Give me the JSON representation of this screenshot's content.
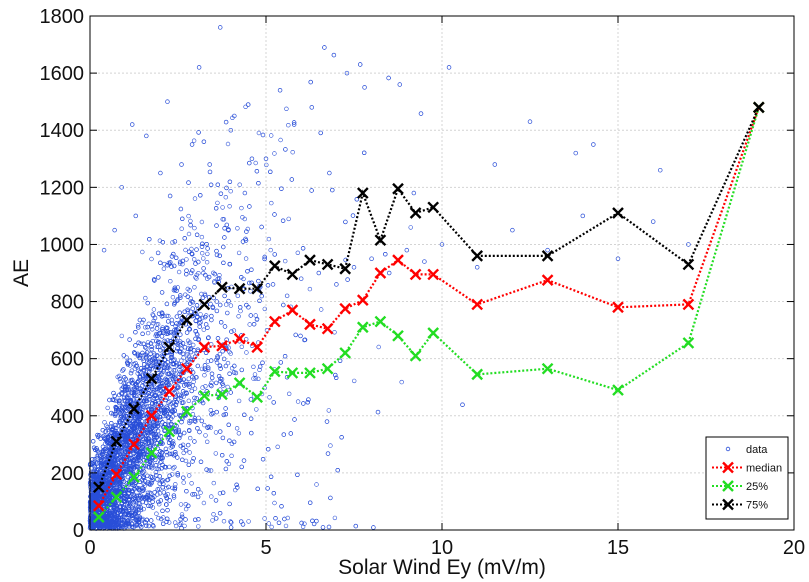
{
  "chart_data": {
    "type": "scatter",
    "title": "",
    "xlabel": "Solar Wind Ey (mV/m)",
    "ylabel": "AE",
    "xlim": [
      0,
      20
    ],
    "ylim": [
      0,
      1800
    ],
    "xticks": [
      0,
      5,
      10,
      15,
      20
    ],
    "yticks": [
      0,
      200,
      400,
      600,
      800,
      1000,
      1200,
      1400,
      1600,
      1800
    ],
    "grid": true,
    "legend_position": "bottom-right",
    "series": [
      {
        "name": "data",
        "kind": "scatter",
        "color": "#2a4fd8",
        "marker": "circle-open",
        "x": [
          0.1,
          0.2,
          0.3,
          0.4,
          0.5,
          0.6,
          0.8,
          1.0,
          1.2,
          1.5,
          1.8,
          2.1,
          2.4,
          2.7,
          3.0,
          3.3,
          3.6,
          3.9,
          4.2,
          4.5,
          4.8,
          5.2,
          5.6,
          6.0,
          6.5,
          7.0,
          7.5,
          8.0,
          8.5,
          9.0,
          9.5,
          10.0,
          11.0,
          12.0,
          13.0,
          14.0,
          15.0,
          16.0,
          17.0,
          1.2,
          1.6,
          2.2,
          2.6,
          3.1,
          3.7,
          4.1,
          4.6,
          5.4,
          6.3,
          7.3,
          8.8,
          10.2,
          12.5,
          14.3,
          0.4,
          0.7,
          0.9,
          1.3,
          2.0,
          2.9,
          3.4,
          4.0,
          4.4,
          5.0,
          5.8,
          6.8,
          7.8,
          9.2,
          11.5,
          13.8,
          16.2
        ],
        "y": [
          180,
          250,
          320,
          200,
          360,
          280,
          420,
          300,
          480,
          520,
          600,
          560,
          700,
          640,
          760,
          720,
          800,
          760,
          820,
          780,
          840,
          860,
          820,
          880,
          900,
          860,
          920,
          950,
          900,
          980,
          940,
          1000,
          920,
          1050,
          980,
          1100,
          950,
          1080,
          1000,
          1420,
          1380,
          1500,
          1280,
          1620,
          1760,
          1450,
          1300,
          1540,
          1480,
          1600,
          1560,
          1620,
          1430,
          1350,
          980,
          1050,
          1200,
          1100,
          1250,
          1350,
          1280,
          1400,
          1180,
          1300,
          1420,
          1250,
          1550,
          1180,
          1280,
          1320,
          1260
        ]
      },
      {
        "name": "median",
        "kind": "line",
        "color": "#ff0000",
        "marker": "x",
        "x": [
          0.25,
          0.75,
          1.25,
          1.75,
          2.25,
          2.75,
          3.25,
          3.75,
          4.25,
          4.75,
          5.25,
          5.75,
          6.25,
          6.75,
          7.25,
          7.75,
          8.25,
          8.75,
          9.25,
          9.75,
          11,
          13,
          15,
          17,
          19
        ],
        "y": [
          85,
          195,
          300,
          400,
          485,
          565,
          640,
          645,
          670,
          640,
          730,
          770,
          720,
          705,
          775,
          805,
          900,
          945,
          895,
          895,
          790,
          875,
          780,
          790,
          1480
        ]
      },
      {
        "name": "25%",
        "kind": "line",
        "color": "#22dd22",
        "marker": "x",
        "x": [
          0.25,
          0.75,
          1.25,
          1.75,
          2.25,
          2.75,
          3.25,
          3.75,
          4.25,
          4.75,
          5.25,
          5.75,
          6.25,
          6.75,
          7.25,
          7.75,
          8.25,
          8.75,
          9.25,
          9.75,
          11,
          13,
          15,
          17,
          19
        ],
        "y": [
          45,
          115,
          185,
          270,
          345,
          415,
          470,
          475,
          515,
          465,
          555,
          550,
          550,
          565,
          620,
          710,
          730,
          680,
          610,
          690,
          545,
          565,
          490,
          655,
          1480
        ]
      },
      {
        "name": "75%",
        "kind": "line",
        "color": "#000000",
        "marker": "x",
        "x": [
          0.25,
          0.75,
          1.25,
          1.75,
          2.25,
          2.75,
          3.25,
          3.75,
          4.25,
          4.75,
          5.25,
          5.75,
          6.25,
          6.75,
          7.25,
          7.75,
          8.25,
          8.75,
          9.25,
          9.75,
          11,
          13,
          15,
          17,
          19
        ],
        "y": [
          150,
          310,
          425,
          530,
          640,
          735,
          790,
          850,
          845,
          845,
          925,
          895,
          945,
          930,
          915,
          1180,
          1015,
          1195,
          1110,
          1130,
          960,
          960,
          1110,
          930,
          1480
        ]
      }
    ]
  }
}
